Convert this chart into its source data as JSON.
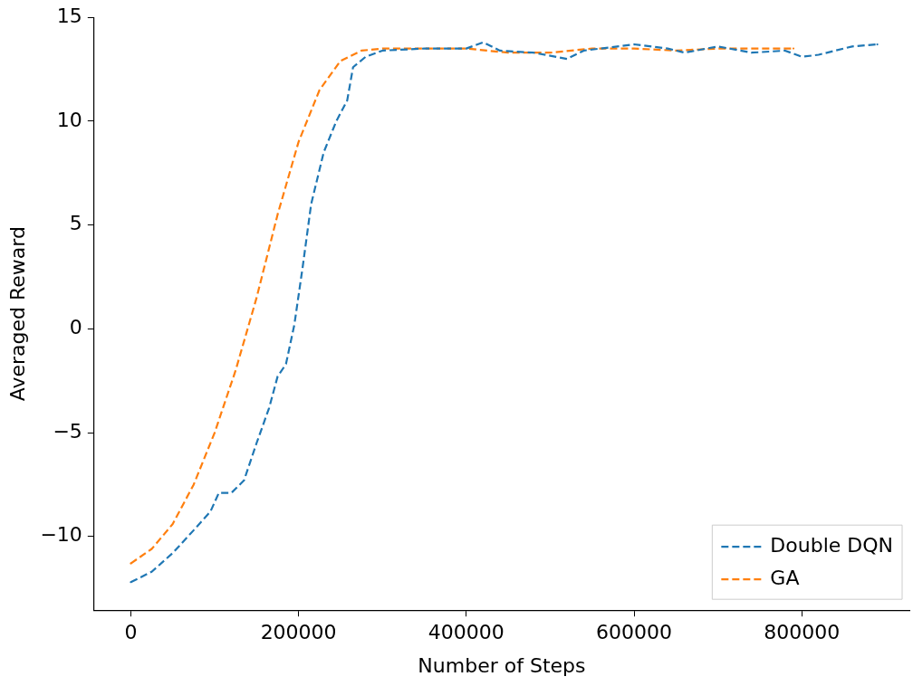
{
  "chart_data": {
    "type": "line",
    "xlabel": "Number of Steps",
    "ylabel": "Averaged Reward",
    "xlim": [
      -43800,
      928200
    ],
    "ylim": [
      -13.55,
      15
    ],
    "xticks": [
      0,
      200000,
      400000,
      600000,
      800000
    ],
    "yticks": [
      -10,
      -5,
      0,
      5,
      10,
      15
    ],
    "grid": false,
    "legend": "bottom right",
    "marker": "none",
    "line_style": "dashed",
    "series": [
      {
        "name": "Double DQN",
        "color": "#1f77b4",
        "x": [
          0,
          25000,
          50000,
          75000,
          95000,
          105000,
          120000,
          135000,
          150000,
          165000,
          175000,
          185000,
          195000,
          205000,
          215000,
          230000,
          245000,
          258000,
          265000,
          280000,
          300000,
          350000,
          400000,
          420000,
          440000,
          480000,
          520000,
          540000,
          600000,
          640000,
          660000,
          700000,
          740000,
          780000,
          800000,
          820000,
          860000,
          890000
        ],
        "values": [
          -12.2,
          -11.7,
          -10.8,
          -9.7,
          -8.8,
          -7.9,
          -7.9,
          -7.3,
          -5.5,
          -3.8,
          -2.3,
          -1.7,
          0.2,
          3,
          6,
          8.5,
          10,
          11,
          12.6,
          13.1,
          13.4,
          13.5,
          13.5,
          13.8,
          13.4,
          13.3,
          13.0,
          13.4,
          13.7,
          13.5,
          13.3,
          13.6,
          13.3,
          13.4,
          13.1,
          13.2,
          13.6,
          13.7
        ]
      },
      {
        "name": "GA",
        "color": "#ff7f0e",
        "x": [
          0,
          25000,
          50000,
          75000,
          100000,
          125000,
          150000,
          175000,
          200000,
          225000,
          250000,
          275000,
          300000,
          400000,
          450000,
          500000,
          550000,
          600000,
          650000,
          700000,
          790000
        ],
        "values": [
          -11.3,
          -10.6,
          -9.4,
          -7.5,
          -5,
          -2,
          1.5,
          5.5,
          9,
          11.5,
          12.9,
          13.4,
          13.5,
          13.5,
          13.3,
          13.3,
          13.5,
          13.5,
          13.4,
          13.5,
          13.5
        ]
      }
    ]
  }
}
